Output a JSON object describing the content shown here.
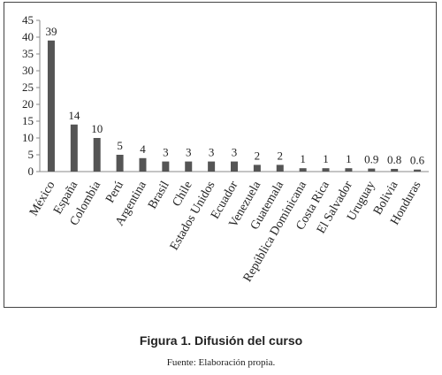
{
  "chart_data": {
    "type": "bar",
    "categories": [
      "México",
      "España",
      "Colombia",
      "Perú",
      "Argentina",
      "Brasil",
      "Chile",
      "Estados Unidos",
      "Ecuador",
      "Venezuela",
      "Guatemala",
      "República Dominicana",
      "Costa Rica",
      "El Salvador",
      "Uruguay",
      "Bolivia",
      "Honduras"
    ],
    "values": [
      39,
      14,
      10,
      5,
      4,
      3,
      3,
      3,
      3,
      2,
      2,
      1,
      1,
      1,
      0.9,
      0.8,
      0.6
    ],
    "data_labels": [
      "39",
      "14",
      "10",
      "5",
      "4",
      "3",
      "3",
      "3",
      "3",
      "2",
      "2",
      "1",
      "1",
      "1",
      "0.9",
      "0.8",
      "0.6"
    ],
    "yticks": [
      0,
      5,
      10,
      15,
      20,
      25,
      30,
      35,
      40,
      45
    ],
    "ylim": [
      0,
      45
    ],
    "grid": false,
    "bar_color": "#555555",
    "title": "",
    "xlabel": "",
    "ylabel": ""
  },
  "caption": {
    "title": "Figura 1. Difusión del curso",
    "source": "Fuente: Elaboración propia."
  }
}
